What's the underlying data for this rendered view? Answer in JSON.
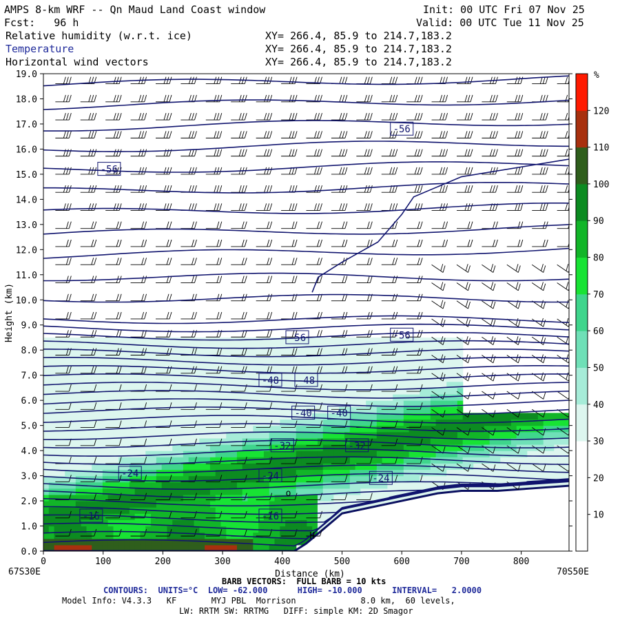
{
  "header": {
    "title": "AMPS 8-km WRF -- Qn Maud Land Coast window",
    "fcst": "Fcst:   96 h",
    "init": "Init: 00 UTC Fri 07 Nov 25",
    "valid": "Valid: 00 UTC Tue 11 Nov 25",
    "fields": [
      {
        "label": "Relative humidity (w.r.t. ice)",
        "xy": "XY= 266.4, 85.9 to 214.7,183.2",
        "color": "#000000"
      },
      {
        "label": "Temperature",
        "xy": "XY= 266.4, 85.9 to 214.7,183.2",
        "color": "#1f2a9a"
      },
      {
        "label": "Horizontal wind vectors",
        "xy": "XY= 266.4, 85.9 to 214.7,183.2",
        "color": "#000000"
      }
    ]
  },
  "footer": {
    "left_coord": "67S30E",
    "right_coord": "70S50E",
    "barb_note": "BARB VECTORS:  FULL BARB = 10 kts",
    "contours": "CONTOURS:  UNITS=°C  LOW= -62.000      HIGH= -10.000      INTERVAL=   2.0000",
    "model_info": "Model Info: V4.3.3   KF       MYJ PBL  Morrison             8.0 km,  60 levels,",
    "model_info2": "LW: RRTM SW: RRTMG   DIFF: simple KM: 2D Smagor"
  },
  "chart_data": {
    "type": "heatmap",
    "title": "",
    "xlabel": "Distance (km)",
    "ylabel": "Height (km)",
    "xlim": [
      0,
      880
    ],
    "ylim": [
      0,
      19
    ],
    "x_ticks": [
      "0",
      "100",
      "200",
      "300",
      "400",
      "500",
      "600",
      "700",
      "800"
    ],
    "y_ticks": [
      "0.0",
      "1.0",
      "2.0",
      "3.0",
      "4.0",
      "5.0",
      "6.0",
      "7.0",
      "8.0",
      "9.0",
      "10.0",
      "11.0",
      "12.0",
      "13.0",
      "14.0",
      "15.0",
      "16.0",
      "17.0",
      "18.0",
      "19.0"
    ],
    "colorbar": {
      "unit": "%",
      "ticks": [
        "10",
        "20",
        "30",
        "40",
        "50",
        "60",
        "70",
        "80",
        "90",
        "100",
        "110",
        "120"
      ],
      "bins": [
        {
          "from": 0,
          "to": 10,
          "color": "#ffffff"
        },
        {
          "from": 10,
          "to": 20,
          "color": "#ffffff"
        },
        {
          "from": 20,
          "to": 30,
          "color": "#ffffff"
        },
        {
          "from": 30,
          "to": 40,
          "color": "#ddf6ef"
        },
        {
          "from": 40,
          "to": 50,
          "color": "#a6ecd8"
        },
        {
          "from": 50,
          "to": 60,
          "color": "#6fe0b7"
        },
        {
          "from": 60,
          "to": 70,
          "color": "#3fd58c"
        },
        {
          "from": 70,
          "to": 80,
          "color": "#18e334"
        },
        {
          "from": 80,
          "to": 90,
          "color": "#12b528"
        },
        {
          "from": 90,
          "to": 100,
          "color": "#0c8b21"
        },
        {
          "from": 100,
          "to": 110,
          "color": "#2f5e1c"
        },
        {
          "from": 110,
          "to": 120,
          "color": "#a8300e"
        },
        {
          "from": 120,
          "to": 130,
          "color": "#ff1a00"
        }
      ]
    },
    "contour_labels": [
      {
        "text": "-56",
        "x": 600,
        "y": 16.8
      },
      {
        "text": "-56",
        "x": 110,
        "y": 15.2
      },
      {
        "text": "-56",
        "x": 425,
        "y": 8.5
      },
      {
        "text": "-56",
        "x": 600,
        "y": 8.6
      },
      {
        "text": "-48",
        "x": 380,
        "y": 6.8
      },
      {
        "text": "-48",
        "x": 440,
        "y": 6.8
      },
      {
        "text": "-40",
        "x": 435,
        "y": 5.5
      },
      {
        "text": "-40",
        "x": 495,
        "y": 5.5
      },
      {
        "text": "-32",
        "x": 400,
        "y": 4.2
      },
      {
        "text": "-32",
        "x": 525,
        "y": 4.2
      },
      {
        "text": "-24",
        "x": 145,
        "y": 3.1
      },
      {
        "text": "-24",
        "x": 380,
        "y": 3.0
      },
      {
        "text": "-24",
        "x": 565,
        "y": 2.9
      },
      {
        "text": "-16",
        "x": 80,
        "y": 1.4
      },
      {
        "text": "-16",
        "x": 380,
        "y": 1.4
      }
    ],
    "marker_text": [
      {
        "text": "o",
        "x": 410,
        "y": 2.2
      },
      {
        "text": "H",
        "x": 450,
        "y": 0.5
      }
    ],
    "terrain": [
      [
        0,
        0
      ],
      [
        420,
        0
      ],
      [
        440,
        0.3
      ],
      [
        470,
        0.9
      ],
      [
        500,
        1.5
      ],
      [
        540,
        1.7
      ],
      [
        580,
        1.9
      ],
      [
        620,
        2.1
      ],
      [
        660,
        2.3
      ],
      [
        700,
        2.4
      ],
      [
        760,
        2.4
      ],
      [
        820,
        2.5
      ],
      [
        880,
        2.6
      ]
    ]
  }
}
